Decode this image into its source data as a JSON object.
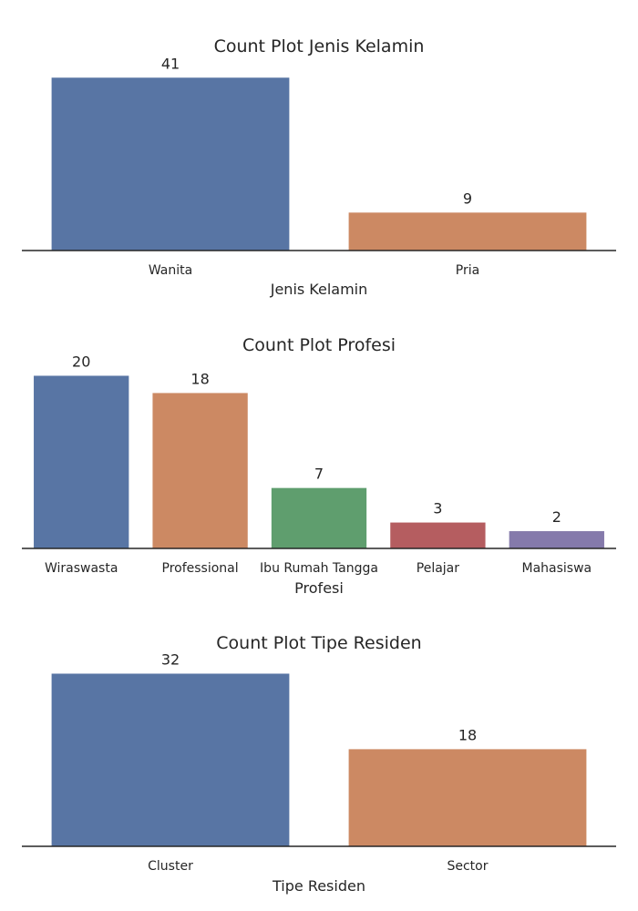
{
  "colors": [
    "#5875a4",
    "#cc8963",
    "#5f9e6e",
    "#b55d60",
    "#857aab"
  ],
  "axis_color": "#262626",
  "chart_data": [
    {
      "type": "bar",
      "title": "Count Plot Jenis Kelamin",
      "xlabel": "Jenis Kelamin",
      "ylabel": "",
      "categories": [
        "Wanita",
        "Pria"
      ],
      "values": [
        41,
        9
      ],
      "ylim": [
        0,
        43
      ],
      "grid": false
    },
    {
      "type": "bar",
      "title": "Count Plot Profesi",
      "xlabel": "Profesi",
      "ylabel": "",
      "categories": [
        "Wiraswasta",
        "Professional",
        "Ibu Rumah Tangga",
        "Pelajar",
        "Mahasiswa"
      ],
      "values": [
        20,
        18,
        7,
        3,
        2
      ],
      "ylim": [
        0,
        21
      ],
      "grid": false
    },
    {
      "type": "bar",
      "title": "Count Plot Tipe Residen",
      "xlabel": "Tipe Residen",
      "ylabel": "",
      "categories": [
        "Cluster",
        "Sector"
      ],
      "values": [
        32,
        18
      ],
      "ylim": [
        0,
        33.6
      ],
      "grid": false
    }
  ]
}
